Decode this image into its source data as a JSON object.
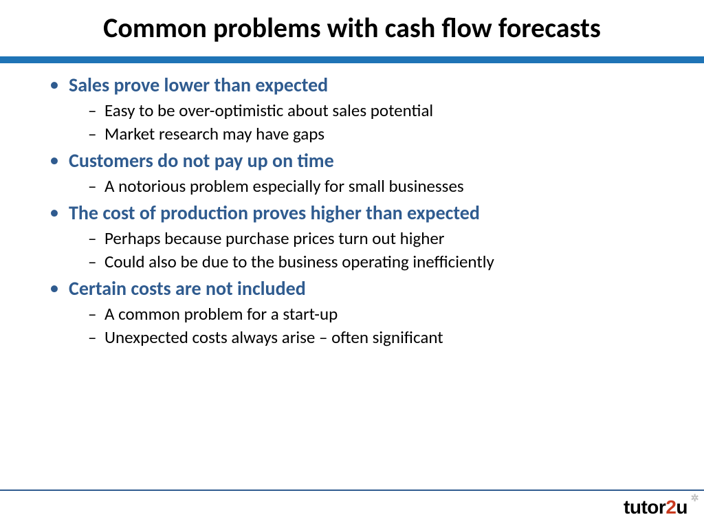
{
  "title": "Common problems with cash flow forecasts",
  "colors": {
    "accent": "#2f5b8f",
    "top_bar": "#1f74b6",
    "logo_black": "#000000",
    "logo_orange": "#c93a1e"
  },
  "typography": {
    "title_fontsize": 40,
    "main_point_fontsize": 28,
    "sub_point_fontsize": 25
  },
  "points": [
    {
      "label": "Sales prove lower than expected",
      "subs": [
        "Easy to be over-optimistic about sales potential",
        "Market research may have gaps"
      ]
    },
    {
      "label": "Customers do not pay up on time",
      "subs": [
        "A notorious problem especially for small businesses"
      ]
    },
    {
      "label": "The cost of production proves higher than expected",
      "subs": [
        "Perhaps because purchase prices turn out higher",
        "Could also be due to the business operating inefficiently"
      ]
    },
    {
      "label": "Certain costs are not included",
      "subs": [
        "A common problem for a start-up",
        "Unexpected costs always arise – often significant"
      ]
    }
  ],
  "logo": {
    "part1": "tutor",
    "part2": "2",
    "part3": "u"
  }
}
